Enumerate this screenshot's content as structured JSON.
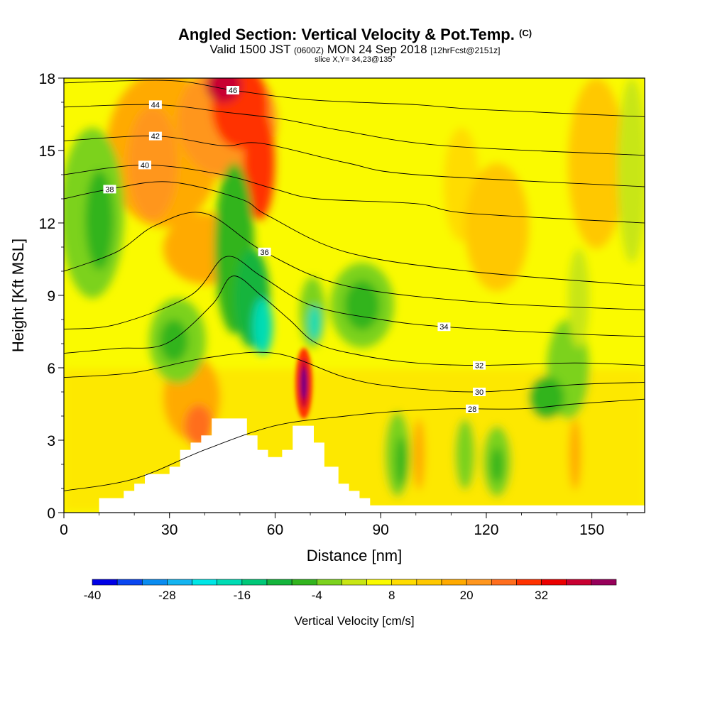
{
  "header": {
    "title_main": "Angled Section: Vertical Velocity & Pot.Temp.",
    "title_suffix": "(C)",
    "valid_a": "Valid 1500 JST",
    "valid_b": "(0600Z)",
    "valid_c": "MON 24 Sep 2018",
    "valid_d": "[12hrFcst@2151z]",
    "slice": "slice X,Y= 34,23@135°"
  },
  "chart_data": {
    "type": "heatmap",
    "xlabel": "Distance [nm]",
    "ylabel": "Height [Kft MSL]",
    "xlim": [
      0,
      165
    ],
    "ylim": [
      0,
      18
    ],
    "x_ticks": [
      "0",
      "30",
      "60",
      "90",
      "120",
      "150"
    ],
    "x_tick_values": [
      0,
      30,
      60,
      90,
      120,
      150
    ],
    "y_ticks": [
      "0",
      "3",
      "6",
      "9",
      "12",
      "15",
      "18"
    ],
    "y_tick_values": [
      0,
      3,
      6,
      9,
      12,
      15,
      18
    ],
    "colorbar": {
      "label": "Vertical Velocity [cm/s]",
      "min": -40,
      "max": 44,
      "step": 4,
      "tick_labels": [
        "-40",
        "-28",
        "-16",
        "-4",
        "8",
        "20",
        "32"
      ],
      "tick_values": [
        -40,
        -28,
        -16,
        -4,
        8,
        20,
        32
      ],
      "colors": [
        "#0000e6",
        "#0a46f0",
        "#0a8cf0",
        "#14b4f0",
        "#00e6e6",
        "#00dcb4",
        "#00c878",
        "#14b43c",
        "#32b41e",
        "#7cd21e",
        "#c8e614",
        "#fafa00",
        "#ffdc00",
        "#ffc800",
        "#ffaa00",
        "#ff961e",
        "#ff6e1e",
        "#ff3200",
        "#eb0000",
        "#c80032",
        "#96005a",
        "#780082"
      ]
    },
    "contour_variable": "Potential temperature (C)",
    "contours": [
      {
        "value": 28,
        "label": "28",
        "label_at": [
          116,
          4.3
        ],
        "points": [
          [
            0,
            0.9
          ],
          [
            20,
            1.4
          ],
          [
            40,
            2.6
          ],
          [
            60,
            3.6
          ],
          [
            80,
            4.0
          ],
          [
            95,
            4.2
          ],
          [
            110,
            4.3
          ],
          [
            130,
            4.3
          ],
          [
            145,
            4.5
          ],
          [
            165,
            4.7
          ]
        ]
      },
      {
        "value": 30,
        "label": "30",
        "label_at": [
          118,
          5.0
        ],
        "points": [
          [
            0,
            5.6
          ],
          [
            20,
            5.8
          ],
          [
            40,
            6.4
          ],
          [
            60,
            6.6
          ],
          [
            80,
            5.6
          ],
          [
            95,
            5.2
          ],
          [
            118,
            5.0
          ],
          [
            145,
            5.3
          ],
          [
            165,
            5.4
          ]
        ]
      },
      {
        "value": 32,
        "label": "32",
        "label_at": [
          118,
          6.1
        ],
        "points": [
          [
            0,
            6.6
          ],
          [
            15,
            6.8
          ],
          [
            29,
            7.0
          ],
          [
            42,
            8.6
          ],
          [
            48,
            9.8
          ],
          [
            56,
            9.0
          ],
          [
            64,
            8.0
          ],
          [
            72,
            7.0
          ],
          [
            85,
            6.5
          ],
          [
            100,
            6.2
          ],
          [
            118,
            6.1
          ],
          [
            145,
            6.2
          ],
          [
            165,
            6.1
          ]
        ]
      },
      {
        "value": 34,
        "label": "34",
        "label_at": [
          108,
          7.7
        ],
        "points": [
          [
            0,
            7.6
          ],
          [
            15,
            7.8
          ],
          [
            36,
            9.0
          ],
          [
            46,
            10.6
          ],
          [
            56,
            9.8
          ],
          [
            70,
            8.6
          ],
          [
            90,
            8.0
          ],
          [
            108,
            7.7
          ],
          [
            145,
            7.4
          ],
          [
            165,
            7.3
          ]
        ]
      },
      {
        "value": 36,
        "label": "36",
        "label_at": [
          57,
          10.8
        ],
        "points": [
          [
            0,
            10.0
          ],
          [
            15,
            10.8
          ],
          [
            26,
            11.9
          ],
          [
            40,
            12.4
          ],
          [
            57,
            10.8
          ],
          [
            80,
            9.4
          ],
          [
            120,
            8.7
          ],
          [
            165,
            8.4
          ]
        ]
      },
      {
        "value": 38,
        "label": "38",
        "label_at": [
          13,
          13.4
        ],
        "points": [
          [
            0,
            13.0
          ],
          [
            13,
            13.4
          ],
          [
            30,
            13.7
          ],
          [
            50,
            13.0
          ],
          [
            58,
            12.3
          ],
          [
            80,
            10.8
          ],
          [
            115,
            10.0
          ],
          [
            165,
            9.4
          ]
        ]
      },
      {
        "value": 40,
        "label": "40",
        "label_at": [
          23,
          14.4
        ],
        "points": [
          [
            0,
            14.0
          ],
          [
            23,
            14.4
          ],
          [
            45,
            14.0
          ],
          [
            60,
            13.4
          ],
          [
            72,
            13.0
          ],
          [
            100,
            12.8
          ],
          [
            115,
            12.4
          ],
          [
            165,
            12.0
          ]
        ]
      },
      {
        "value": 42,
        "label": "42",
        "label_at": [
          26,
          15.6
        ],
        "points": [
          [
            0,
            15.4
          ],
          [
            26,
            15.6
          ],
          [
            45,
            15.2
          ],
          [
            56,
            15.3
          ],
          [
            80,
            14.5
          ],
          [
            100,
            14.0
          ],
          [
            165,
            13.5
          ]
        ]
      },
      {
        "value": 44,
        "label": "44",
        "label_at": [
          26,
          16.9
        ],
        "points": [
          [
            0,
            16.8
          ],
          [
            26,
            16.9
          ],
          [
            45,
            16.6
          ],
          [
            62,
            16.3
          ],
          [
            80,
            15.8
          ],
          [
            108,
            15.2
          ],
          [
            165,
            14.8
          ]
        ]
      },
      {
        "value": 46,
        "label": "46",
        "label_at": [
          48,
          17.5
        ],
        "points": [
          [
            0,
            17.8
          ],
          [
            30,
            17.9
          ],
          [
            48,
            17.5
          ],
          [
            70,
            17.1
          ],
          [
            100,
            16.9
          ],
          [
            118,
            16.7
          ],
          [
            165,
            16.4
          ]
        ]
      }
    ],
    "terrain_profile": [
      [
        10,
        0.6
      ],
      [
        17,
        0.6
      ],
      [
        17,
        0.9
      ],
      [
        20,
        0.9
      ],
      [
        20,
        1.2
      ],
      [
        23,
        1.2
      ],
      [
        23,
        1.6
      ],
      [
        30,
        1.6
      ],
      [
        30,
        1.9
      ],
      [
        33,
        1.9
      ],
      [
        33,
        2.6
      ],
      [
        36,
        2.6
      ],
      [
        36,
        2.9
      ],
      [
        39,
        2.9
      ],
      [
        39,
        3.2
      ],
      [
        42,
        3.2
      ],
      [
        42,
        3.9
      ],
      [
        52,
        3.9
      ],
      [
        52,
        3.2
      ],
      [
        55,
        3.2
      ],
      [
        55,
        2.6
      ],
      [
        58,
        2.6
      ],
      [
        58,
        2.3
      ],
      [
        62,
        2.3
      ],
      [
        62,
        2.6
      ],
      [
        65,
        2.6
      ],
      [
        65,
        3.6
      ],
      [
        71,
        3.6
      ],
      [
        71,
        2.9
      ],
      [
        74,
        2.9
      ],
      [
        74,
        1.9
      ],
      [
        78,
        1.9
      ],
      [
        78,
        1.2
      ],
      [
        81,
        1.2
      ],
      [
        81,
        0.9
      ],
      [
        84,
        0.9
      ],
      [
        84,
        0.6
      ],
      [
        87,
        0.6
      ],
      [
        87,
        0.3
      ],
      [
        165,
        0.3
      ]
    ]
  }
}
